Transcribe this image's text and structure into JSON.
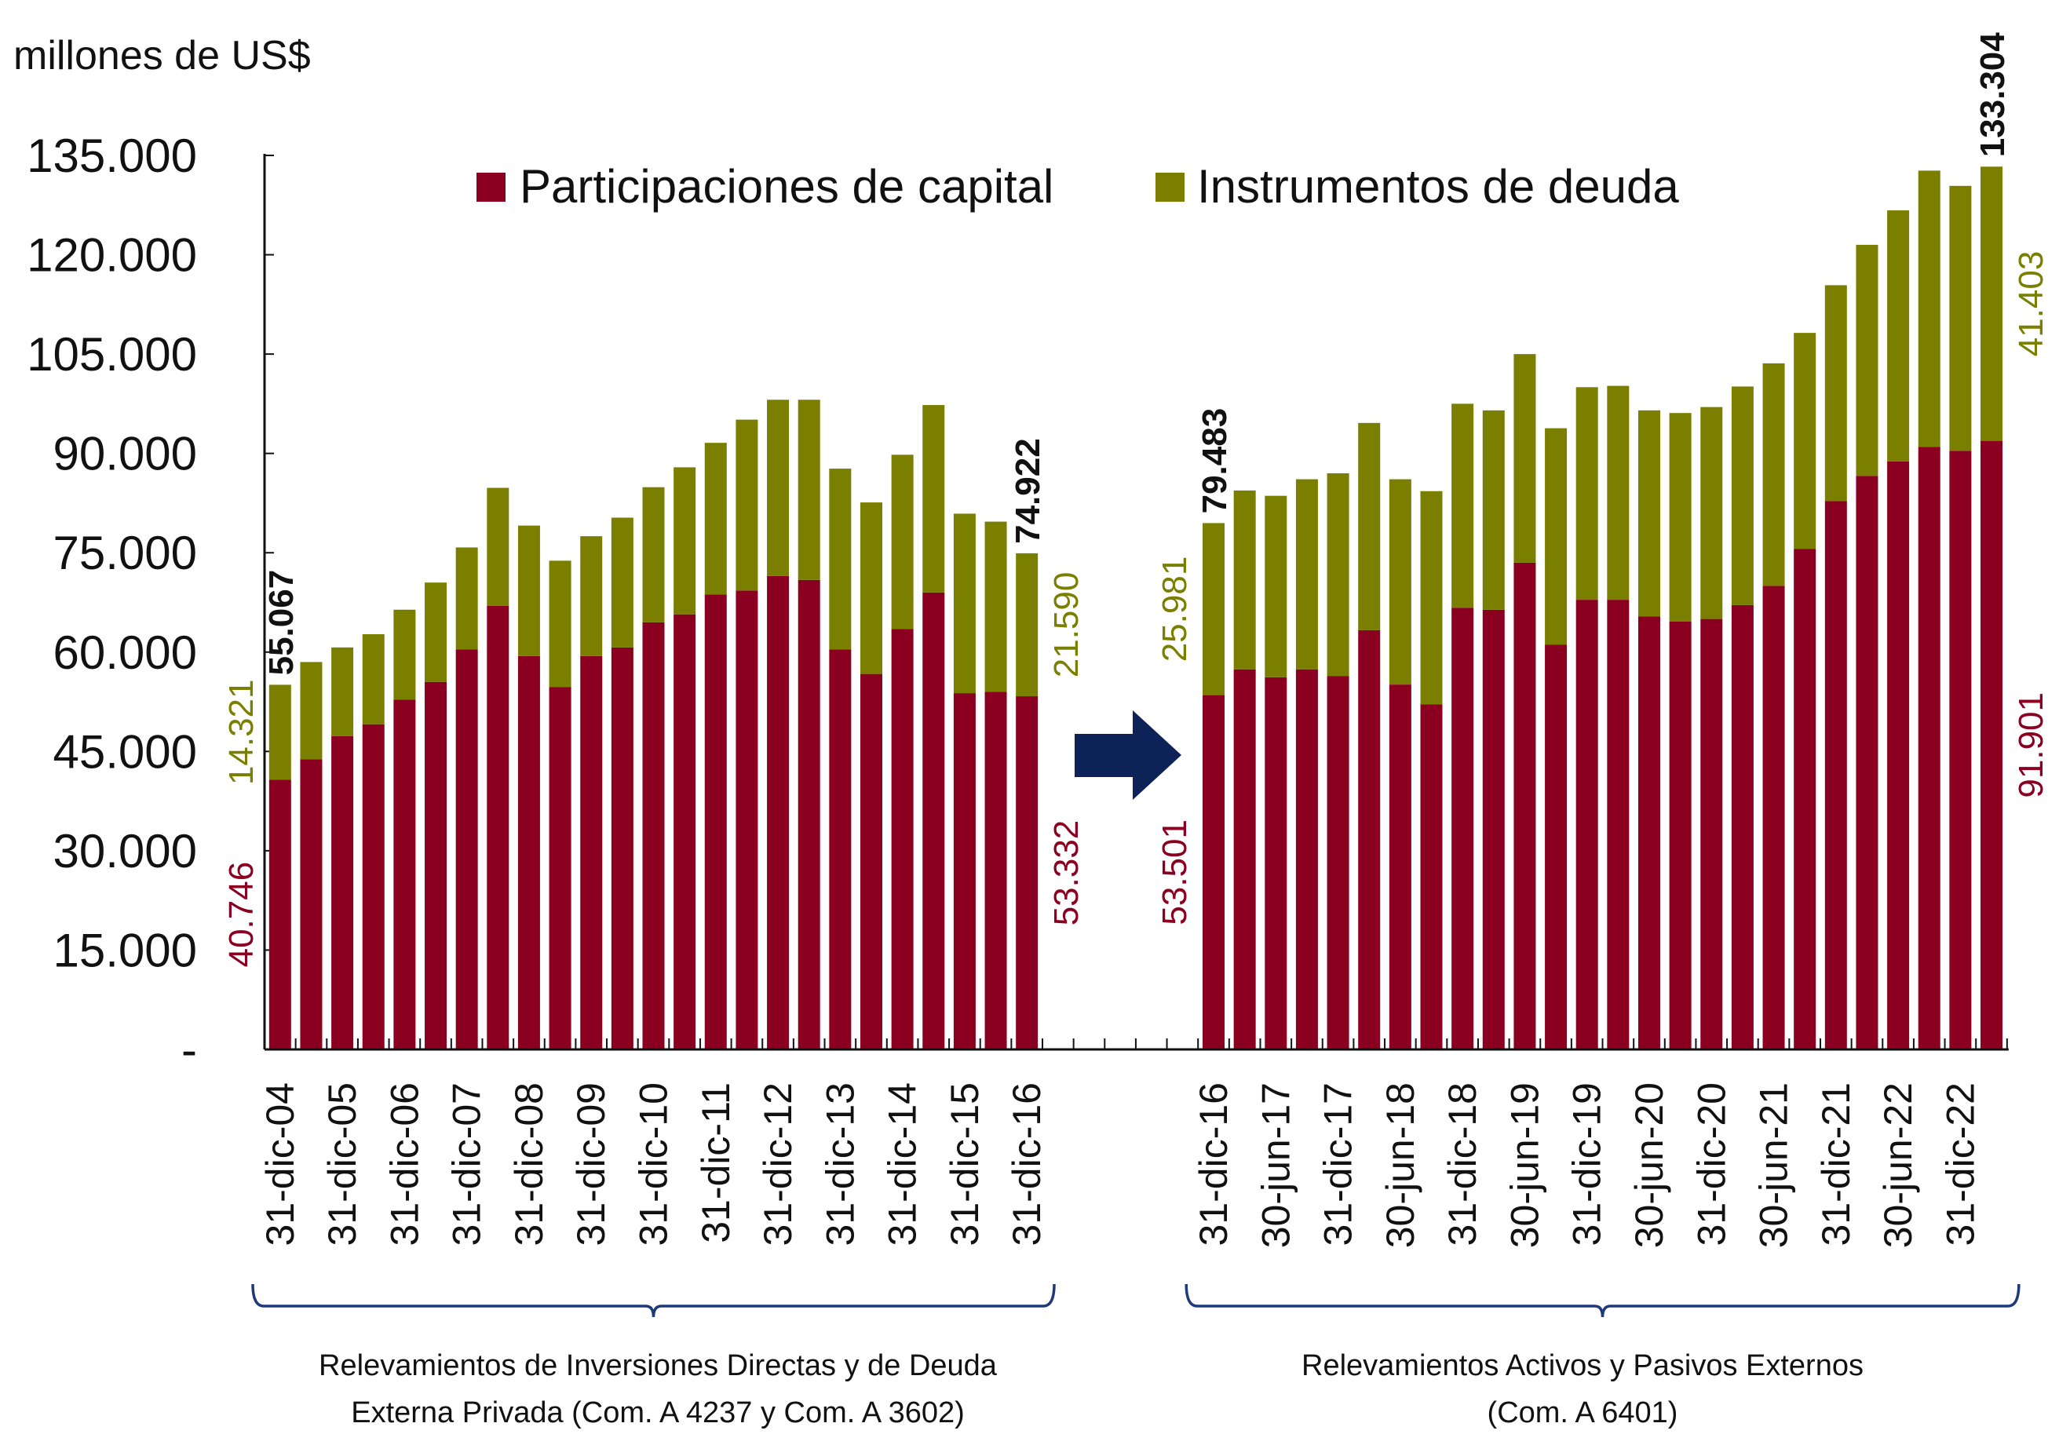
{
  "chart_data": {
    "type": "bar",
    "stacked": true,
    "unit_label": "millones de US$",
    "ylim": [
      0,
      135000
    ],
    "yticks": [
      0,
      15000,
      30000,
      45000,
      60000,
      75000,
      90000,
      105000,
      120000,
      135000
    ],
    "ytick_labels": [
      "-",
      "15.000",
      "30.000",
      "45.000",
      "60.000",
      "75.000",
      "90.000",
      "105.000",
      "120.000",
      "135.000"
    ],
    "grid": false,
    "legend_position": "top",
    "colors": {
      "capital": "#8b0020",
      "deuda": "#7a7f00",
      "arrow": "#0d2257",
      "brace": "#1f3a7a"
    },
    "series": [
      {
        "key": "capital",
        "name": "Participaciones de capital"
      },
      {
        "key": "deuda",
        "name": "Instrumentos de deuda"
      }
    ],
    "groups": [
      {
        "caption": [
          "Relevamientos de Inversiones Directas y de Deuda",
          "Externa Privada (Com. A 4237 y Com. A 3602)"
        ],
        "categories": [
          "31-dic-04",
          "",
          "31-dic-05",
          "",
          "31-dic-06",
          "",
          "31-dic-07",
          "",
          "31-dic-08",
          "",
          "31-dic-09",
          "",
          "31-dic-10",
          "",
          "31-dic-11",
          "",
          "31-dic-12",
          "",
          "31-dic-13",
          "",
          "31-dic-14",
          "",
          "31-dic-15",
          "",
          "31-dic-16"
        ],
        "capital": [
          40746,
          43800,
          47300,
          49100,
          52800,
          55500,
          60400,
          67000,
          59400,
          54700,
          59400,
          60700,
          64500,
          65700,
          68700,
          69300,
          71500,
          70900,
          60400,
          56700,
          63500,
          69000,
          53800,
          54000,
          53332
        ],
        "deuda": [
          14321,
          14700,
          13400,
          13600,
          13600,
          15000,
          15400,
          17800,
          19700,
          19100,
          18100,
          19600,
          20400,
          22200,
          22900,
          25800,
          26600,
          27200,
          27300,
          25900,
          26300,
          28300,
          27100,
          25700,
          21590
        ],
        "data_labels": {
          "first": {
            "capital": "40.746",
            "deuda": "14.321",
            "total": "55.067"
          },
          "last": {
            "capital": "53.332",
            "deuda": "21.590",
            "total": "74.922"
          }
        }
      },
      {
        "caption": [
          "Relevamientos Activos y Pasivos Externos",
          "(Com. A 6401)"
        ],
        "categories": [
          "31-dic-16",
          "",
          "30-jun-17",
          "",
          "31-dic-17",
          "",
          "30-jun-18",
          "",
          "31-dic-18",
          "",
          "30-jun-19",
          "",
          "31-dic-19",
          "",
          "30-jun-20",
          "",
          "31-dic-20",
          "",
          "30-jun-21",
          "",
          "31-dic-21",
          "",
          "30-jun-22",
          "",
          "31-dic-22",
          ""
        ],
        "capital": [
          53501,
          57400,
          56200,
          57400,
          56400,
          63300,
          55100,
          52100,
          66700,
          66400,
          73500,
          61100,
          67900,
          67900,
          65400,
          64600,
          65000,
          67100,
          70000,
          75600,
          82800,
          86600,
          88800,
          91000,
          90400,
          91901
        ],
        "deuda": [
          25981,
          27000,
          27400,
          28700,
          30600,
          31300,
          31000,
          32200,
          30800,
          30100,
          31500,
          32700,
          32100,
          32300,
          31100,
          31500,
          32000,
          33000,
          33600,
          32600,
          32600,
          34900,
          37900,
          41700,
          40000,
          41403
        ],
        "data_labels": {
          "first": {
            "capital": "53.501",
            "deuda": "25.981",
            "total": "79.483"
          },
          "last": {
            "capital": "91.901",
            "deuda": "41.403",
            "total": "133.304"
          }
        }
      }
    ]
  }
}
